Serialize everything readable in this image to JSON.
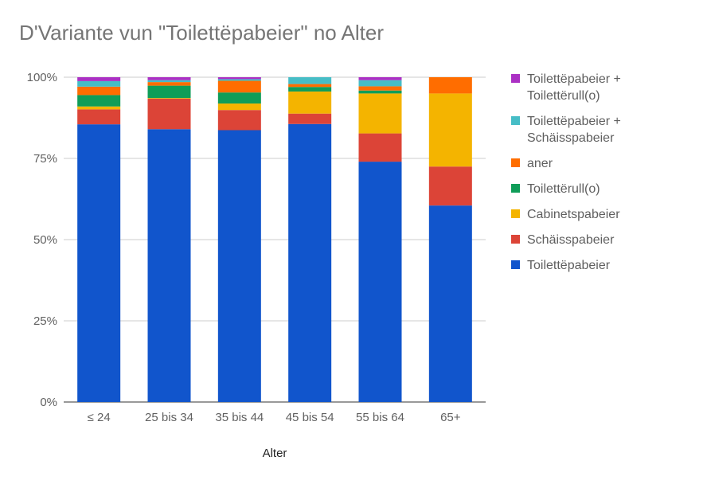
{
  "chart_data": {
    "type": "bar",
    "stacked": true,
    "title": "D'Variante vun \"Toilettëpabeier\" no Alter",
    "xlabel": "Alter",
    "ylabel": "",
    "ylim": [
      0,
      100
    ],
    "yticks": [
      "0%",
      "25%",
      "50%",
      "75%",
      "100%"
    ],
    "grid": true,
    "legend_position": "right",
    "categories": [
      "≤ 24",
      "25 bis 34",
      "35 bis 44",
      "45 bis 54",
      "55 bis 64",
      "65+"
    ],
    "series": [
      {
        "name": "Toilettëpabeier",
        "color": "#1155cc",
        "values": [
          85.5,
          84,
          83.7,
          85.6,
          74,
          60.5
        ]
      },
      {
        "name": "Schäisspabeier",
        "color": "#dc4437",
        "values": [
          4.6,
          9.4,
          6.2,
          3.2,
          8.7,
          12
        ]
      },
      {
        "name": "Cabinetspabeier",
        "color": "#f4b400",
        "values": [
          0.9,
          0.2,
          2,
          6.8,
          12.3,
          22.5
        ]
      },
      {
        "name": "Toilettërull(o)",
        "color": "#0f9d58",
        "values": [
          3.5,
          3.8,
          3.4,
          1.4,
          0.9,
          0
        ]
      },
      {
        "name": "aner",
        "color": "#ff6d00",
        "values": [
          2.6,
          1.1,
          3.6,
          0.9,
          1.3,
          5
        ]
      },
      {
        "name": "Toilettëpabeier + Schäisspabeier",
        "color": "#46bdc6",
        "values": [
          1.7,
          0.6,
          0.5,
          2.1,
          1.9,
          0
        ]
      },
      {
        "name": "Toilettëpabeier + Toilettërull(o)",
        "color": "#ab30c4",
        "values": [
          1.2,
          0.9,
          0.6,
          0,
          0.9,
          0
        ]
      }
    ]
  }
}
